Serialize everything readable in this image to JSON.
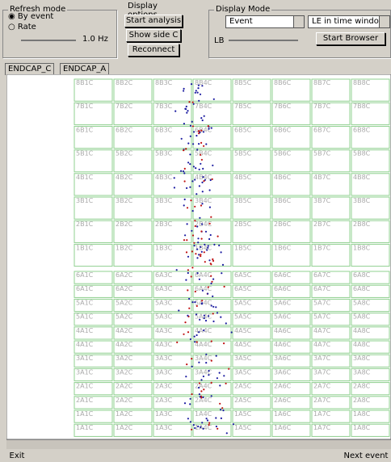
{
  "refresh_mode": {
    "title": "Refresh mode",
    "options": [
      "By event",
      "Rate"
    ],
    "rate": "1.0 Hz"
  },
  "display_options": {
    "title": "Display options",
    "buttons": [
      "Start analysis",
      "Show side C",
      "Reconnect"
    ]
  },
  "display_mode": {
    "title": "Display Mode",
    "select1": "Event",
    "select2": "LE in time windo",
    "slider_label": "LB",
    "button": "Start Browser"
  },
  "tabs": [
    "ENDCAP_C",
    "ENDCAP_A"
  ],
  "grid": {
    "upper": [
      [
        "8B1C",
        "8B2C",
        "8B3C",
        "8B4C",
        "8B5C",
        "8B6C",
        "8B7C",
        "8B8C"
      ],
      [
        "7B1C",
        "7B2C",
        "7B3C",
        "7B4C",
        "7B5C",
        "7B6C",
        "7B7C",
        "7B8C"
      ],
      [
        "6B1C",
        "6B2C",
        "6B3C",
        "6B4C",
        "6B5C",
        "6B6C",
        "6B7C",
        "6B8C"
      ],
      [
        "5B1C",
        "5B2C",
        "5B3C",
        "5B4C",
        "5B5C",
        "5B6C",
        "5B7C",
        "5B8C"
      ],
      [
        "4B1C",
        "4B2C",
        "4B3C",
        "4B4C",
        "4B5C",
        "4B6C",
        "4B7C",
        "4B8C"
      ],
      [
        "3B1C",
        "3B2C",
        "3B3C",
        "3B4C",
        "3B5C",
        "3B6C",
        "3B7C",
        "3B8C"
      ],
      [
        "2B1C",
        "2B2C",
        "2B3C",
        "2B4C",
        "2B5C",
        "2B6C",
        "2B7C",
        "2B8C"
      ],
      [
        "1B1C",
        "1B2C",
        "1B3C",
        "1B4C",
        "1B5C",
        "1B6C",
        "1B7C",
        "1B8C"
      ]
    ],
    "lower": [
      [
        "6A1C",
        "6A2C",
        "6A3C",
        "6A4C",
        "6A5C",
        "6A6C",
        "6A7C",
        "6A8C"
      ],
      [
        "6A1C",
        "6A2C",
        "6A3C",
        "6A4C",
        "6A5C",
        "6A6C",
        "6A7C",
        "6A8C"
      ],
      [
        "5A1C",
        "5A2C",
        "5A3C",
        "5A4C",
        "5A5C",
        "5A6C",
        "5A7C",
        "5A8C"
      ],
      [
        "5A1C",
        "5A2C",
        "5A3C",
        "5A4C",
        "5A5C",
        "5A6C",
        "5A7C",
        "5A8C"
      ],
      [
        "4A1C",
        "4A2C",
        "4A3C",
        "4A4C",
        "4A5C",
        "4A6C",
        "4A7C",
        "4A8C"
      ],
      [
        "4A1C",
        "4A2C",
        "4A3C",
        "4A4C",
        "4A5C",
        "4A6C",
        "4A7C",
        "4A8C"
      ],
      [
        "3A1C",
        "3A2C",
        "3A3C",
        "3A4C",
        "3A5C",
        "3A6C",
        "3A7C",
        "3A8C"
      ],
      [
        "3A1C",
        "3A2C",
        "3A3C",
        "3A4C",
        "3A5C",
        "3A6C",
        "3A7C",
        "3A8C"
      ],
      [
        "2A1C",
        "2A2C",
        "2A3C",
        "2A4C",
        "2A5C",
        "2A6C",
        "2A7C",
        "2A8C"
      ],
      [
        "2A1C",
        "2A2C",
        "2A3C",
        "2A4C",
        "2A5C",
        "2A6C",
        "2A7C",
        "2A8C"
      ],
      [
        "1A1C",
        "1A2C",
        "1A3C",
        "1A4C",
        "1A5C",
        "1A6C",
        "1A7C",
        "1A8C"
      ],
      [
        "1A1C",
        "1A2C",
        "1A3C",
        "1A4C",
        "1A5C",
        "1A6C",
        "1A7C",
        "1A8C"
      ]
    ]
  },
  "footer": {
    "exit": "Exit",
    "next": "Next event"
  }
}
